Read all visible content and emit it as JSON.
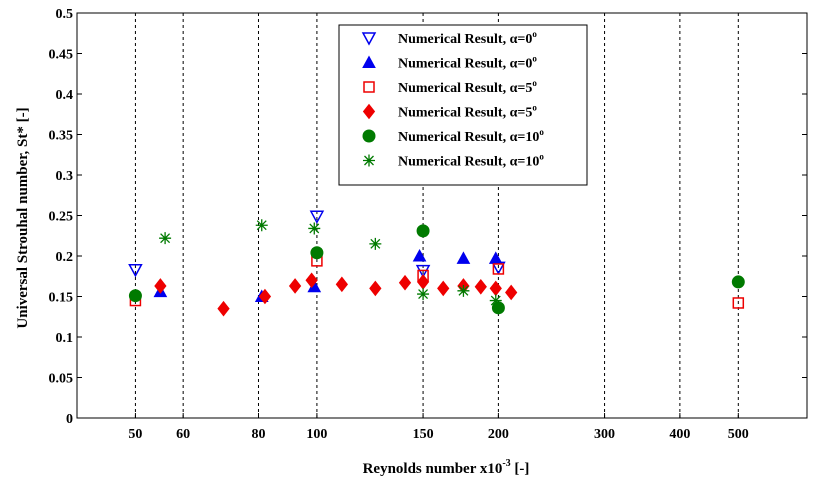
{
  "chart_data": {
    "type": "scatter",
    "title": "",
    "xlabel": "Reynolds number x10",
    "xlabel_sup": "-3",
    "xlabel_unit": " [-]",
    "ylabel": "Universal Strouhal number, St* [-]",
    "x_scale": "log",
    "xlim": [
      40,
      650
    ],
    "ylim": [
      0,
      0.5
    ],
    "xticks": [
      50,
      60,
      80,
      100,
      150,
      200,
      300,
      400,
      500
    ],
    "xtick_labels": [
      "50",
      "60",
      "80",
      "100",
      "150",
      "200",
      "300",
      "400",
      "500"
    ],
    "yticks": [
      0,
      0.05,
      0.1,
      0.15,
      0.2,
      0.25,
      0.3,
      0.35,
      0.4,
      0.45,
      0.5
    ],
    "ytick_labels": [
      "0",
      "0.05",
      "0.1",
      "0.15",
      "0.2",
      "0.25",
      "0.3",
      "0.35",
      "0.4",
      "0.45",
      "0.5"
    ],
    "grid": "vertical dashed",
    "legend_position": "top-center",
    "series": [
      {
        "name": "Numerical Result, α=0°",
        "label": "Numerical Result, ",
        "alpha_sym": "α",
        "alpha_val": "=0",
        "deg": "o",
        "marker": "triangle-down-open",
        "color": "#0000ee",
        "x": [
          50,
          100,
          150,
          200
        ],
        "y": [
          0.183,
          0.249,
          0.182,
          0.186
        ]
      },
      {
        "name": "Numerical Result, α=0°",
        "label": "Numerical Result, ",
        "alpha_sym": "α",
        "alpha_val": "=0",
        "deg": "o",
        "marker": "triangle-up-filled",
        "color": "#0000ee",
        "x": [
          55,
          81,
          99,
          148,
          175,
          198
        ],
        "y": [
          0.156,
          0.15,
          0.162,
          0.2,
          0.197,
          0.197
        ]
      },
      {
        "name": "Numerical Result, α=5°",
        "label": "Numerical Result, ",
        "alpha_sym": "α",
        "alpha_val": "=5",
        "deg": "o",
        "marker": "square-open",
        "color": "#ee0000",
        "x": [
          50,
          100,
          150,
          200,
          500
        ],
        "y": [
          0.145,
          0.194,
          0.176,
          0.184,
          0.142
        ]
      },
      {
        "name": "Numerical Result, α=5°",
        "label": "Numerical Result, ",
        "alpha_sym": "α",
        "alpha_val": "=5",
        "deg": "o",
        "marker": "diamond-filled",
        "color": "#ee0000",
        "x": [
          55,
          70,
          82,
          92,
          98,
          110,
          125,
          140,
          150,
          162,
          175,
          187,
          198,
          210
        ],
        "y": [
          0.163,
          0.135,
          0.15,
          0.163,
          0.17,
          0.165,
          0.16,
          0.167,
          0.168,
          0.16,
          0.163,
          0.162,
          0.16,
          0.155
        ]
      },
      {
        "name": "Numerical Result, α=10°",
        "label": "Numerical Result, ",
        "alpha_sym": "α",
        "alpha_val": "=10",
        "deg": "o",
        "marker": "circle-filled",
        "color": "#007a00",
        "x": [
          50,
          100,
          150,
          200,
          500
        ],
        "y": [
          0.151,
          0.204,
          0.231,
          0.136,
          0.168
        ]
      },
      {
        "name": "Numerical Result, α=10°",
        "label": "Numerical Result, ",
        "alpha_sym": "α",
        "alpha_val": "=10",
        "deg": "o",
        "marker": "star",
        "color": "#007a00",
        "x": [
          56,
          81,
          99,
          125,
          150,
          175,
          198
        ],
        "y": [
          0.222,
          0.238,
          0.234,
          0.215,
          0.153,
          0.157,
          0.145
        ]
      }
    ]
  }
}
